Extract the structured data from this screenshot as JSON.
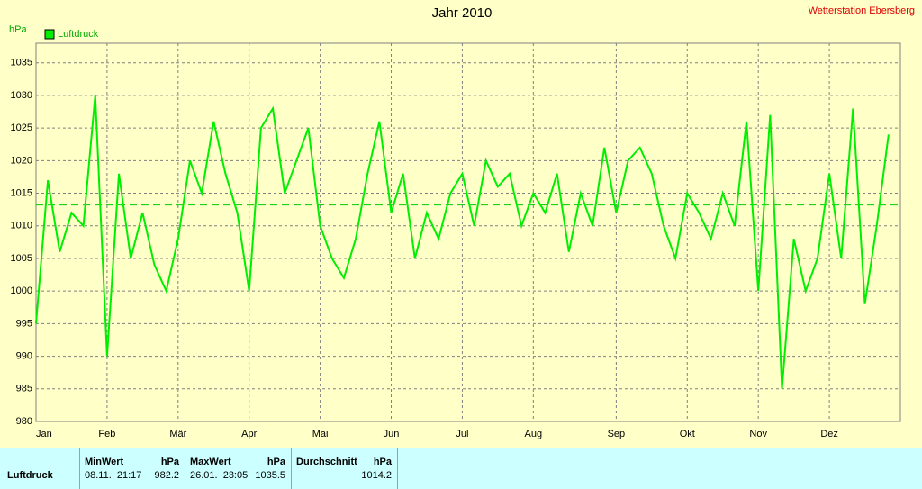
{
  "chart_data": {
    "type": "line",
    "title": "Jahr 2010",
    "station": "Wetterstation Ebersberg",
    "y_label": "hPa",
    "categories": [
      "Jan",
      null,
      null,
      null,
      null,
      null,
      "Feb",
      null,
      null,
      null,
      null,
      null,
      "Mär",
      null,
      null,
      null,
      null,
      null,
      "Apr",
      null,
      null,
      null,
      null,
      null,
      "Mai",
      null,
      null,
      null,
      null,
      null,
      "Jun",
      null,
      null,
      null,
      null,
      null,
      "Jul",
      null,
      null,
      null,
      null,
      null,
      "Aug",
      null,
      null,
      null,
      null,
      null,
      null,
      "Sep",
      null,
      null,
      null,
      null,
      null,
      "Okt",
      null,
      null,
      null,
      null,
      null,
      "Nov",
      null,
      null,
      null,
      null,
      null,
      "Dez",
      null,
      null,
      null,
      null,
      null
    ],
    "series": [
      {
        "name": "Luftdruck",
        "color": "#00ee00",
        "values": [
          995,
          1017,
          1006,
          1012,
          1010,
          1030,
          990,
          1018,
          1005,
          1012,
          1004,
          1000,
          1008,
          1020,
          1015,
          1026,
          1018,
          1012,
          1000,
          1025,
          1028,
          1015,
          1020,
          1025,
          1010,
          1005,
          1002,
          1008,
          1018,
          1026,
          1012,
          1018,
          1005,
          1012,
          1008,
          1015,
          1018,
          1010,
          1020,
          1016,
          1018,
          1010,
          1015,
          1012,
          1018,
          1006,
          1015,
          1010,
          1022,
          1012,
          1020,
          1022,
          1018,
          1010,
          1005,
          1015,
          1012,
          1008,
          1015,
          1010,
          1026,
          1000,
          1027,
          985,
          1008,
          1000,
          1005,
          1018,
          1005,
          1028,
          998,
          1010,
          1024
        ]
      }
    ],
    "reference_line": 1013.2,
    "ylim": [
      980,
      1038
    ],
    "yticks": [
      980,
      985,
      990,
      995,
      1000,
      1005,
      1010,
      1015,
      1020,
      1025,
      1030,
      1035
    ],
    "grid": true
  },
  "table": {
    "header": [
      "MinWert",
      "hPa",
      "MaxWert",
      "hPa",
      "Durchschnitt",
      "hPa"
    ],
    "rows": [
      [
        "Luftdruck",
        "08.11.  21:17",
        "982.2",
        "26.01.  23:05",
        "1035.5",
        "1014.2"
      ]
    ]
  }
}
